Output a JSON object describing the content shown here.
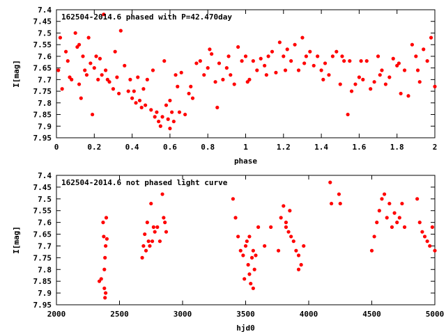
{
  "chart_data": [
    {
      "type": "scatter",
      "title": "162504-2014.6 phased with P=42.470day",
      "xlabel": "phase",
      "ylabel": "I[mag]",
      "xlim": [
        0,
        2
      ],
      "ylim": [
        7.95,
        7.4
      ],
      "y_inverted": true,
      "grid": false,
      "marker_color": "#ff0000",
      "x_ticks": [
        "0",
        "0.2",
        "0.4",
        "0.6",
        "0.8",
        "1",
        "1.2",
        "1.4",
        "1.6",
        "1.8",
        "2"
      ],
      "y_ticks": [
        "7.4",
        "7.45",
        "7.5",
        "7.55",
        "7.6",
        "7.65",
        "7.7",
        "7.75",
        "7.8",
        "7.85",
        "7.9",
        "7.95"
      ],
      "x": [
        0.01,
        0.03,
        0.05,
        0.06,
        0.08,
        0.1,
        0.12,
        0.12,
        0.13,
        0.14,
        0.15,
        0.16,
        0.17,
        0.18,
        0.19,
        0.2,
        0.22,
        0.23,
        0.24,
        0.25,
        0.26,
        0.28,
        0.3,
        0.32,
        0.33,
        0.34,
        0.36,
        0.38,
        0.39,
        0.4,
        0.42,
        0.43,
        0.44,
        0.45,
        0.46,
        0.47,
        0.48,
        0.5,
        0.52,
        0.53,
        0.54,
        0.55,
        0.56,
        0.57,
        0.58,
        0.59,
        0.6,
        0.6,
        0.61,
        0.62,
        0.64,
        0.65,
        0.66,
        0.68,
        0.7,
        0.72,
        0.74,
        0.76,
        0.78,
        0.8,
        0.82,
        0.84,
        0.85,
        0.86,
        0.88,
        0.9,
        0.92,
        0.94,
        0.96,
        0.98,
        1.0,
        1.02,
        1.04,
        1.06,
        1.08,
        1.1,
        1.12,
        1.14,
        1.16,
        1.18,
        1.2,
        1.22,
        1.24,
        1.26,
        1.28,
        1.3,
        1.32,
        1.34,
        1.36,
        1.38,
        1.4,
        1.42,
        1.44,
        1.46,
        1.48,
        1.5,
        1.52,
        1.54,
        1.55,
        1.56,
        1.58,
        1.6,
        1.62,
        1.64,
        1.66,
        1.68,
        1.7,
        1.72,
        1.74,
        1.76,
        1.78,
        1.8,
        1.82,
        1.84,
        1.86,
        1.88,
        1.9,
        1.92,
        1.94,
        1.96,
        1.98,
        2.0,
        0.02,
        0.07,
        0.11,
        0.21,
        0.27,
        0.31,
        0.41,
        0.51,
        0.63,
        0.71,
        0.81,
        0.91,
        1.01,
        1.11,
        1.21,
        1.31,
        1.41,
        1.51,
        1.61,
        1.71,
        1.81,
        1.91
      ],
      "y": [
        7.66,
        7.74,
        7.58,
        7.62,
        7.7,
        7.5,
        7.55,
        7.72,
        7.78,
        7.6,
        7.66,
        7.68,
        7.52,
        7.63,
        7.85,
        7.65,
        7.7,
        7.61,
        7.68,
        7.42,
        7.66,
        7.71,
        7.74,
        7.69,
        7.76,
        7.49,
        7.64,
        7.75,
        7.7,
        7.78,
        7.8,
        7.69,
        7.79,
        7.82,
        7.74,
        7.81,
        7.7,
        7.83,
        7.86,
        7.84,
        7.88,
        7.9,
        7.86,
        7.62,
        7.81,
        7.87,
        7.91,
        7.79,
        7.84,
        7.88,
        7.73,
        7.84,
        7.67,
        7.85,
        7.76,
        7.78,
        7.63,
        7.62,
        7.68,
        7.65,
        7.59,
        7.71,
        7.82,
        7.63,
        7.7,
        7.65,
        7.68,
        7.72,
        7.56,
        7.62,
        7.6,
        7.7,
        7.62,
        7.66,
        7.61,
        7.64,
        7.6,
        7.58,
        7.67,
        7.54,
        7.6,
        7.57,
        7.62,
        7.55,
        7.66,
        7.52,
        7.6,
        7.58,
        7.64,
        7.6,
        7.66,
        7.63,
        7.68,
        7.6,
        7.58,
        7.72,
        7.62,
        7.85,
        7.62,
        7.75,
        7.72,
        7.69,
        7.7,
        7.62,
        7.74,
        7.71,
        7.6,
        7.66,
        7.72,
        7.69,
        7.61,
        7.64,
        7.76,
        7.66,
        7.77,
        7.55,
        7.6,
        7.71,
        7.57,
        7.62,
        7.52,
        7.73,
        7.52,
        7.69,
        7.56,
        7.6,
        7.7,
        7.58,
        7.75,
        7.66,
        7.68,
        7.73,
        7.57,
        7.6,
        7.71,
        7.68,
        7.66,
        7.63,
        7.7,
        7.6,
        7.62,
        7.68,
        7.63,
        7.66
      ]
    },
    {
      "type": "scatter",
      "title": "162504-2014.6 not phased light curve",
      "xlabel": "hjd0",
      "ylabel": "I[mag]",
      "xlim": [
        2000,
        5000
      ],
      "ylim": [
        7.95,
        7.4
      ],
      "y_inverted": true,
      "grid": false,
      "marker_color": "#ff0000",
      "x_ticks": [
        "2000",
        "2500",
        "3000",
        "3500",
        "4000",
        "4500",
        "5000"
      ],
      "y_ticks": [
        "7.4",
        "7.45",
        "7.5",
        "7.55",
        "7.6",
        "7.65",
        "7.7",
        "7.75",
        "7.8",
        "7.85",
        "7.9",
        "7.95"
      ],
      "x": [
        2340,
        2355,
        2370,
        2375,
        2380,
        2385,
        2390,
        2395,
        2400,
        2380,
        2390,
        2385,
        2680,
        2700,
        2720,
        2740,
        2750,
        2760,
        2770,
        2780,
        2800,
        2820,
        2840,
        2850,
        2860,
        2870,
        2690,
        2710,
        2730,
        3400,
        3420,
        3440,
        3460,
        3480,
        3500,
        3510,
        3520,
        3530,
        3540,
        3550,
        3560,
        3570,
        3580,
        3600,
        3650,
        3700,
        3760,
        3780,
        3800,
        3820,
        3840,
        3860,
        3880,
        3900,
        3920,
        3940,
        3960,
        4170,
        4180,
        4240,
        4250,
        4500,
        4520,
        4540,
        4560,
        4580,
        4600,
        4620,
        4640,
        4660,
        4680,
        4700,
        4720,
        4740,
        4760,
        4860,
        4880,
        4900,
        4920,
        4940,
        4960,
        4980,
        5000,
        3490,
        3530,
        3560,
        3820,
        3850,
        3920
      ],
      "y": [
        7.85,
        7.84,
        7.6,
        7.66,
        7.88,
        7.92,
        7.7,
        7.58,
        7.67,
        7.8,
        7.9,
        7.75,
        7.75,
        7.65,
        7.6,
        7.7,
        7.52,
        7.68,
        7.62,
        7.64,
        7.62,
        7.68,
        7.48,
        7.58,
        7.6,
        7.64,
        7.7,
        7.72,
        7.68,
        7.5,
        7.58,
        7.66,
        7.72,
        7.74,
        7.7,
        7.68,
        7.78,
        7.82,
        7.86,
        7.75,
        7.72,
        7.8,
        7.74,
        7.62,
        7.7,
        7.62,
        7.72,
        7.58,
        7.53,
        7.6,
        7.64,
        7.66,
        7.68,
        7.72,
        7.74,
        7.78,
        7.7,
        7.43,
        7.52,
        7.48,
        7.52,
        7.72,
        7.66,
        7.6,
        7.55,
        7.5,
        7.48,
        7.58,
        7.52,
        7.62,
        7.56,
        7.6,
        7.58,
        7.52,
        7.62,
        7.5,
        7.6,
        7.64,
        7.66,
        7.68,
        7.7,
        7.62,
        7.72,
        7.84,
        7.66,
        7.88,
        7.62,
        7.55,
        7.8
      ]
    }
  ]
}
